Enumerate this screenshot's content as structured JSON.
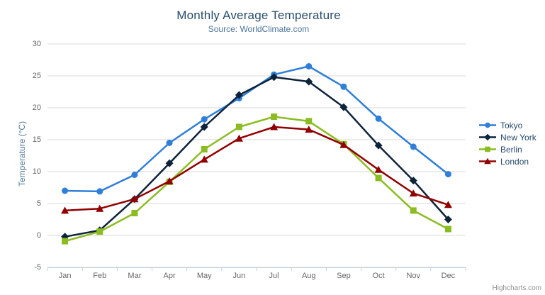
{
  "chart": {
    "credits_label": "Highcharts.com",
    "menu_icon": "hamburger"
  },
  "chart_data": {
    "type": "line",
    "title": "Monthly Average Temperature",
    "subtitle": "Source: WorldClimate.com",
    "categories": [
      "Jan",
      "Feb",
      "Mar",
      "Apr",
      "May",
      "Jun",
      "Jul",
      "Aug",
      "Sep",
      "Oct",
      "Nov",
      "Dec"
    ],
    "xlabel": "",
    "ylabel": "Temperature (°C)",
    "ylim": [
      -5,
      30
    ],
    "yticks": [
      -5,
      0,
      5,
      10,
      15,
      20,
      25,
      30
    ],
    "grid": true,
    "legend_position": "right",
    "series": [
      {
        "name": "Tokyo",
        "color": "#2f7ed8",
        "marker": "circle",
        "values": [
          7.0,
          6.9,
          9.5,
          14.5,
          18.2,
          21.5,
          25.2,
          26.5,
          23.3,
          18.3,
          13.9,
          9.6
        ]
      },
      {
        "name": "New York",
        "color": "#0d233a",
        "marker": "diamond",
        "values": [
          -0.2,
          0.8,
          5.7,
          11.3,
          17.0,
          22.0,
          24.8,
          24.1,
          20.1,
          14.1,
          8.6,
          2.5
        ]
      },
      {
        "name": "Berlin",
        "color": "#8bbc21",
        "marker": "square",
        "values": [
          -0.9,
          0.6,
          3.5,
          8.4,
          13.5,
          17.0,
          18.6,
          17.9,
          14.3,
          9.0,
          3.9,
          1.0
        ]
      },
      {
        "name": "London",
        "color": "#910000",
        "marker": "triangle",
        "values": [
          3.9,
          4.2,
          5.7,
          8.5,
          11.9,
          15.2,
          17.0,
          16.6,
          14.2,
          10.3,
          6.6,
          4.8
        ]
      }
    ],
    "colors": {
      "grid_line": "#d8d8d8",
      "axis_line": "#c0d0e0",
      "title_text": "#274b6d",
      "subtitle_text": "#4d759e",
      "axis_label_text": "#666666",
      "legend_text": "#274b6d",
      "credits_text": "#909090"
    }
  }
}
